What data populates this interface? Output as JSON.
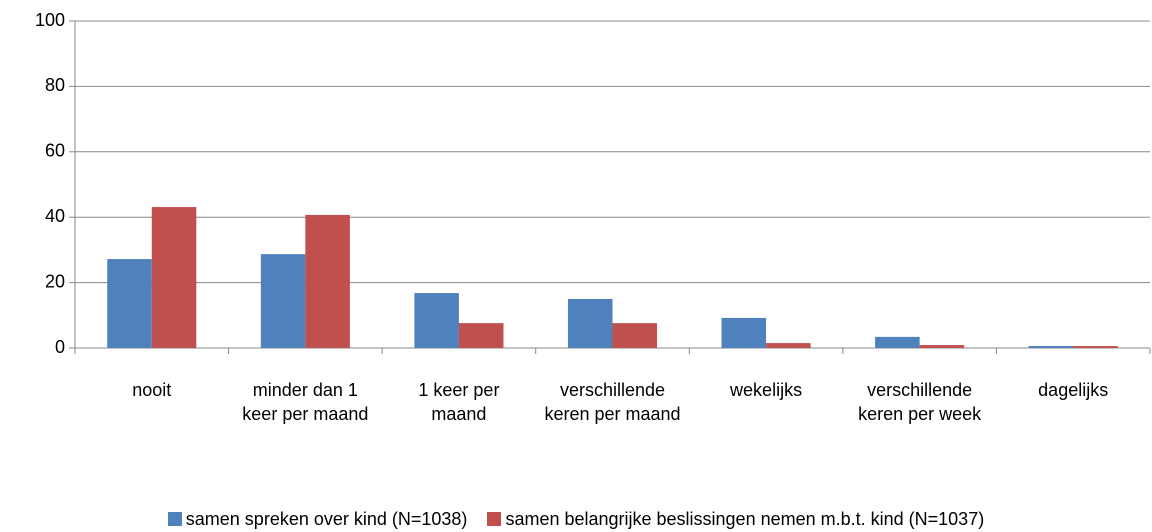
{
  "chart_data": {
    "type": "bar",
    "categories": [
      "nooit",
      "minder dan 1 keer per maand",
      "1 keer per maand",
      "verschillende keren per maand",
      "wekelijks",
      "verschillende keren per week",
      "dagelijks"
    ],
    "series": [
      {
        "name": "samen spreken over kind (N=1038)",
        "color": "#4f81bd",
        "values": [
          27.2,
          28.7,
          16.8,
          15,
          9.2,
          3.4,
          0.6
        ]
      },
      {
        "name": "samen belangrijke beslissingen nemen m.b.t. kind (N=1037)",
        "color": "#c0504d",
        "values": [
          43.1,
          40.7,
          7.6,
          7.6,
          1.5,
          0.9,
          0.6
        ]
      }
    ],
    "ylim": [
      0,
      100
    ],
    "yticks": [
      0,
      20,
      40,
      60,
      80,
      100
    ],
    "grid": true,
    "legend": "bottom"
  }
}
